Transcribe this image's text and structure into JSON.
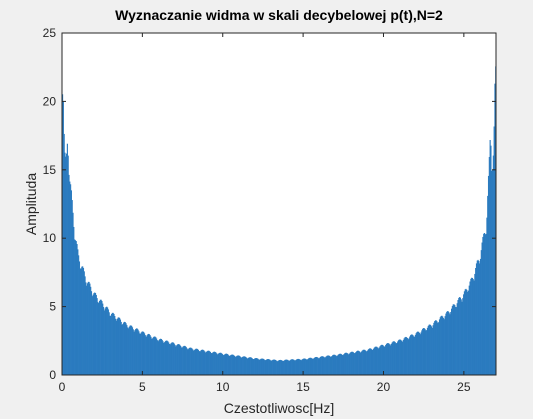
{
  "chart_data": {
    "type": "bar",
    "title": "Wyznaczanie widma w skali decybelowej p(t),N=2",
    "xlabel": "Czestotliwosc[Hz]",
    "ylabel": "Amplituda",
    "xlim": [
      0,
      27
    ],
    "ylim": [
      0,
      25
    ],
    "xticks": [
      "0",
      "5",
      "10",
      "15",
      "20",
      "25"
    ],
    "yticks": [
      "0",
      "5",
      "10",
      "15",
      "20",
      "25"
    ],
    "grid": false,
    "bar_color": "#2b7bbf",
    "samples_x": [
      0.05,
      0.15,
      0.25,
      0.35,
      0.45,
      0.6,
      0.8,
      1.0,
      1.5,
      2.0,
      3.0,
      4.0,
      5.0,
      6.0,
      8.0,
      10.0,
      12.0,
      13.5,
      15.0,
      17.0,
      19.0,
      21.0,
      22.0,
      23.0,
      24.0,
      25.0,
      25.5,
      26.0,
      26.4,
      26.55,
      26.65,
      26.75,
      26.85,
      26.95
    ],
    "samples_y": [
      22.8,
      16.5,
      15.8,
      18.3,
      15.0,
      13.2,
      10.6,
      9.0,
      7.2,
      6.1,
      4.7,
      3.8,
      3.2,
      2.7,
      2.0,
      1.6,
      1.25,
      1.1,
      1.2,
      1.5,
      1.9,
      2.6,
      3.1,
      3.8,
      4.7,
      6.1,
      7.2,
      9.0,
      11.5,
      15.2,
      18.3,
      15.8,
      16.8,
      22.8
    ]
  }
}
